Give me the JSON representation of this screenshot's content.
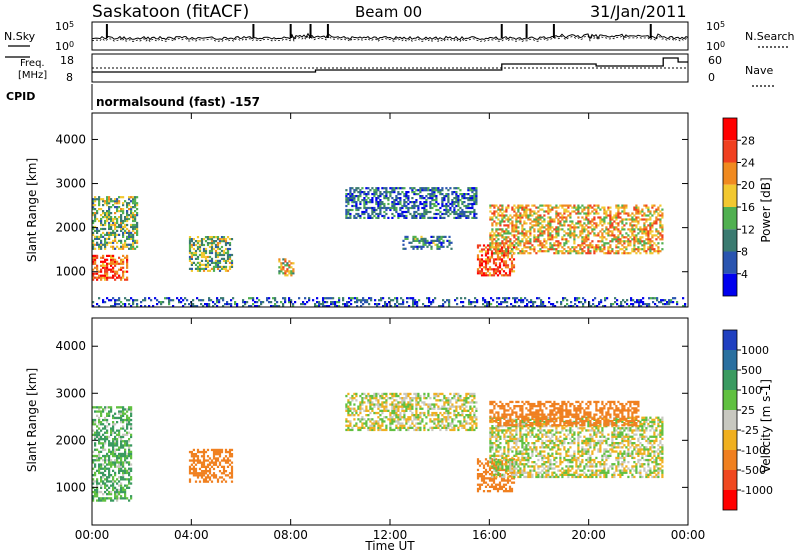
{
  "header": {
    "station": "Saskatoon (fitACF)",
    "beam": "Beam 00",
    "date": "31/Jan/2011"
  },
  "noise_panel": {
    "left_label": "N.Sky",
    "right_label": "N.Search",
    "top_tick": "10^5",
    "bottom_tick": "10^0",
    "top_tick_base": "10",
    "top_tick_exp": "5",
    "bottom_tick_base": "10",
    "bottom_tick_exp": "0"
  },
  "freq_panel": {
    "left_label_line1": "Freq.",
    "left_label_line2": "[MHz]",
    "right_label": "Nave",
    "left_ticks": [
      "18",
      "8"
    ],
    "right_ticks": [
      "60",
      "0"
    ]
  },
  "cpid_panel": {
    "label": "CPID",
    "text": "normalsound (fast) -157"
  },
  "x_axis": {
    "ticks": [
      "00:00",
      "04:00",
      "08:00",
      "12:00",
      "16:00",
      "20:00",
      "00:00"
    ],
    "title": "Time UT"
  },
  "power_panel": {
    "ylabel": "Slant Range [km]",
    "yticks": [
      "1000",
      "2000",
      "3000",
      "4000"
    ],
    "colorbar_label": "Power [dB]",
    "colorbar_ticks": [
      "4",
      "8",
      "12",
      "16",
      "20",
      "24",
      "28"
    ],
    "colors": [
      "#0000ee",
      "#2a55b0",
      "#3a7a70",
      "#50b050",
      "#f2c830",
      "#f08a20",
      "#f04020",
      "#ff0000"
    ]
  },
  "velocity_panel": {
    "ylabel": "Slant Range [km]",
    "yticks": [
      "1000",
      "2000",
      "3000",
      "4000"
    ],
    "colorbar_label": "Velocity [m s-1]",
    "colorbar_ticks": [
      "1000",
      "500",
      "100",
      "25",
      "-25",
      "-100",
      "-500",
      "-1000"
    ],
    "colors": [
      "#2040c0",
      "#2a70a0",
      "#3a9a60",
      "#60c040",
      "#c8c8c0",
      "#f0b020",
      "#f08020",
      "#f04820",
      "#ff0000"
    ]
  },
  "chart_data": {
    "type": "heatmap",
    "title": "Saskatoon (fitACF) Beam 00 31/Jan/2011",
    "xlabel": "Time UT",
    "ylabel": "Slant Range [km]",
    "xlim": [
      "00:00",
      "24:00"
    ],
    "ylim": [
      200,
      4600
    ],
    "series": [
      {
        "name": "Power [dB]",
        "features": [
          {
            "t0": 0.0,
            "t1": 1.4,
            "r0": 800,
            "r1": 1350,
            "value": 26
          },
          {
            "t0": 0.0,
            "t1": 1.8,
            "r0": 1500,
            "r1": 2700,
            "value": 14
          },
          {
            "t0": 3.9,
            "t1": 5.6,
            "r0": 1000,
            "r1": 1800,
            "value": 14
          },
          {
            "t0": 7.5,
            "t1": 8.1,
            "r0": 900,
            "r1": 1300,
            "value": 18
          },
          {
            "t0": 10.2,
            "t1": 15.5,
            "r0": 2200,
            "r1": 2900,
            "value": 8
          },
          {
            "t0": 12.5,
            "t1": 14.5,
            "r0": 1500,
            "r1": 1800,
            "value": 10
          },
          {
            "t0": 15.5,
            "t1": 17.0,
            "r0": 900,
            "r1": 1600,
            "value": 26
          },
          {
            "t0": 16.0,
            "t1": 23.0,
            "r0": 1400,
            "r1": 2500,
            "value": 20
          },
          {
            "t0": 0.0,
            "t1": 24.0,
            "r0": 200,
            "r1": 400,
            "value": 6
          }
        ]
      },
      {
        "name": "Velocity [m s-1]",
        "features": [
          {
            "t0": 0.0,
            "t1": 1.6,
            "r0": 700,
            "r1": 2700,
            "value": 100
          },
          {
            "t0": 3.9,
            "t1": 5.6,
            "r0": 1100,
            "r1": 1800,
            "value": -200
          },
          {
            "t0": 10.2,
            "t1": 15.5,
            "r0": 2200,
            "r1": 3000,
            "value": 0
          },
          {
            "t0": 15.5,
            "t1": 17.0,
            "r0": 900,
            "r1": 1600,
            "value": -300
          },
          {
            "t0": 16.0,
            "t1": 23.0,
            "r0": 1200,
            "r1": 2500,
            "value": 0
          },
          {
            "t0": 16.0,
            "t1": 22.0,
            "r0": 2300,
            "r1": 2800,
            "value": -300
          }
        ]
      }
    ],
    "noise": {
      "range": [
        "10^0",
        "10^5"
      ]
    },
    "frequency": {
      "range_mhz": [
        8,
        18
      ],
      "nave_range": [
        0,
        60
      ]
    }
  }
}
